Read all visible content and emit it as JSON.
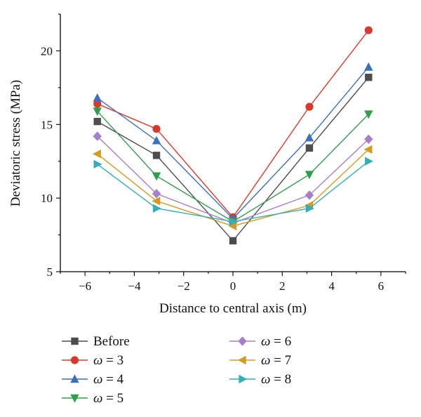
{
  "chart_data": {
    "type": "line",
    "xlabel": "Distance to central axis (m)",
    "ylabel": "Deviatoric stress (MPa)",
    "xlim": [
      -7,
      7
    ],
    "ylim": [
      5,
      22.5
    ],
    "xticks": [
      -6,
      -4,
      -2,
      0,
      2,
      4,
      6
    ],
    "xtick_labels": [
      "−6",
      "−4",
      "−2",
      "0",
      "2",
      "4",
      "6"
    ],
    "yticks": [
      5,
      10,
      15,
      20
    ],
    "ytick_labels": [
      "5",
      "10",
      "15",
      "20"
    ],
    "grid": false,
    "legend_placement": "bottom",
    "x": [
      -5.5,
      -3.1,
      0,
      3.1,
      5.5
    ],
    "series": [
      {
        "name": "Before",
        "values": [
          15.2,
          12.9,
          7.1,
          13.4,
          18.2
        ],
        "color": "#4d4d4d",
        "marker": "square"
      },
      {
        "name": "ω = 3",
        "values": [
          16.4,
          14.7,
          8.7,
          16.2,
          21.4
        ],
        "color": "#d9392b",
        "marker": "circle"
      },
      {
        "name": "ω = 4",
        "values": [
          16.8,
          13.9,
          8.6,
          14.1,
          18.9
        ],
        "color": "#3d6fbf",
        "marker": "triangle-up"
      },
      {
        "name": "ω = 5",
        "values": [
          15.9,
          11.5,
          8.4,
          11.6,
          15.7
        ],
        "color": "#2f9e4f",
        "marker": "triangle-down"
      },
      {
        "name": "ω = 6",
        "values": [
          14.2,
          10.3,
          8.3,
          10.2,
          14.0
        ],
        "color": "#a77fc9",
        "marker": "diamond"
      },
      {
        "name": "ω = 7",
        "values": [
          13.0,
          9.8,
          8.1,
          9.5,
          13.3
        ],
        "color": "#d49b22",
        "marker": "triangle-left"
      },
      {
        "name": "ω = 8",
        "values": [
          12.3,
          9.3,
          8.4,
          9.3,
          12.5
        ],
        "color": "#34aeb9",
        "marker": "triangle-right"
      }
    ]
  }
}
